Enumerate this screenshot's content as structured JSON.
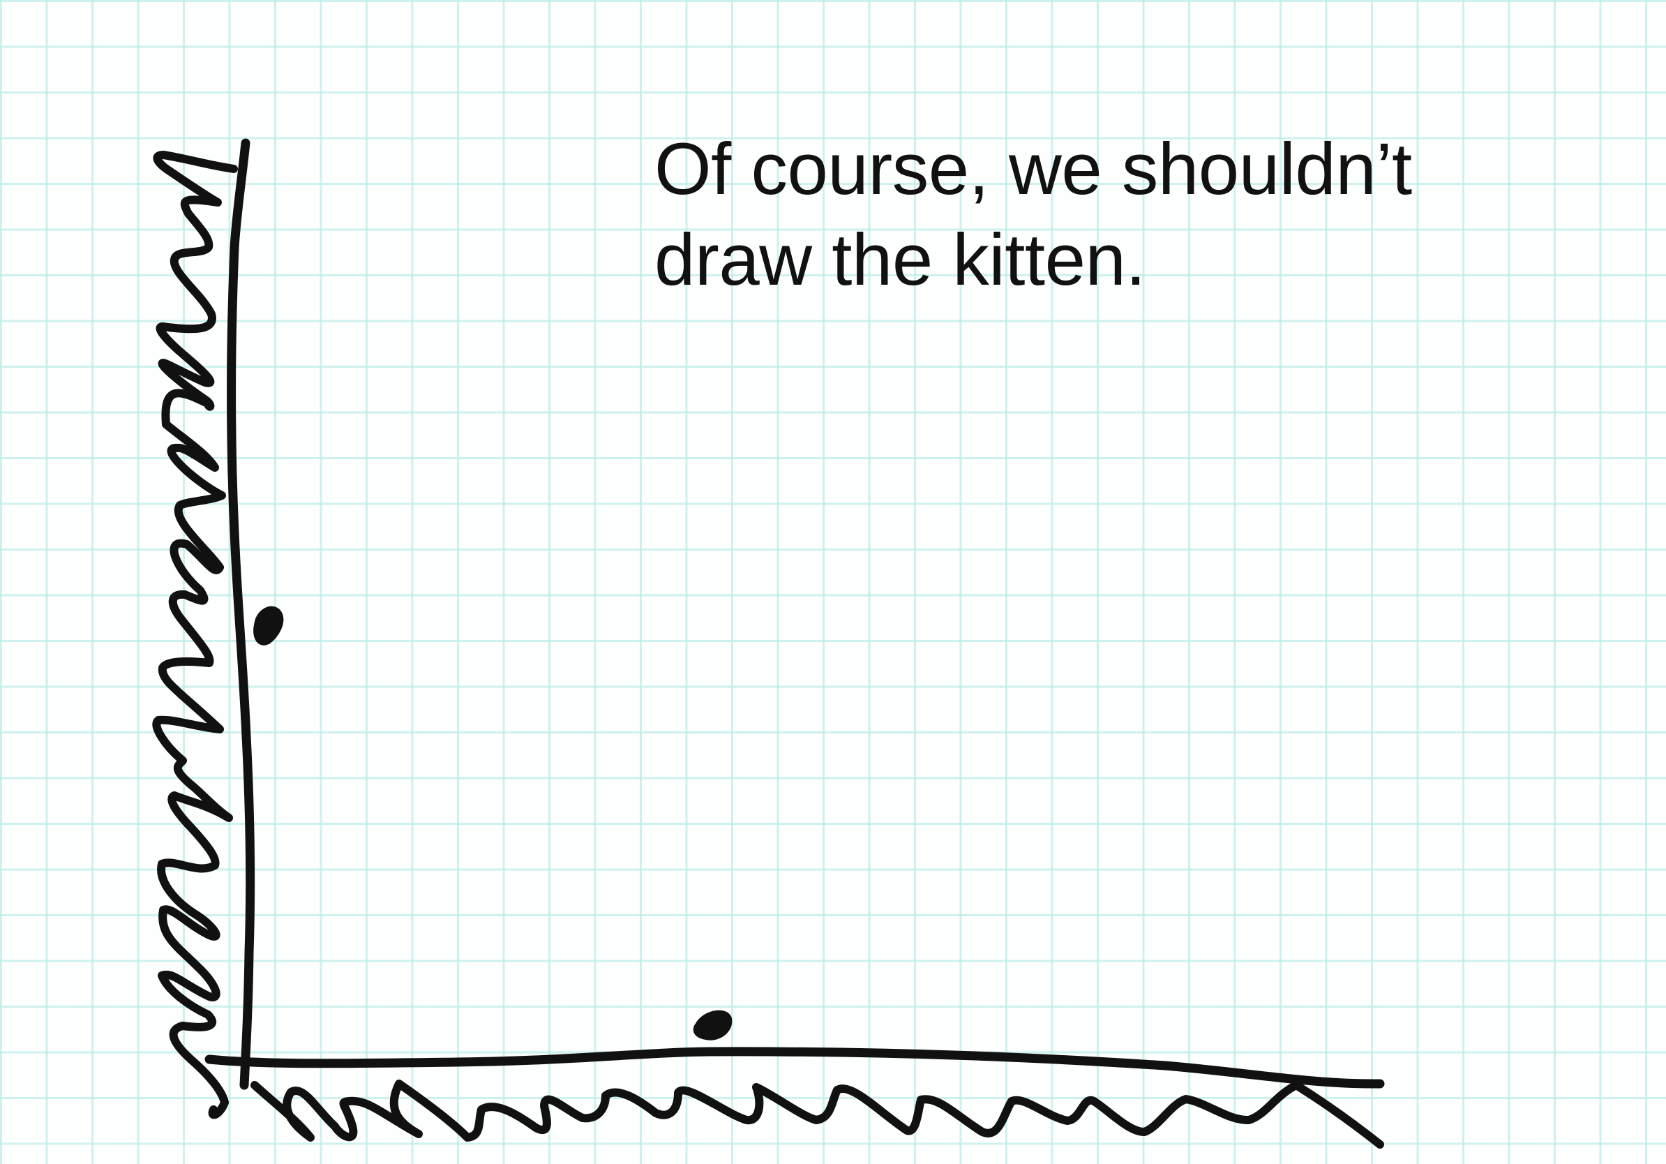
{
  "caption": {
    "line1": "Of course, we shouldn’t",
    "line2": "draw the kitten."
  },
  "colors": {
    "ink": "#111111",
    "grid": "#beeceb",
    "paper": "#fdfffe"
  },
  "icons": {
    "y_axis": "hand-drawn-vertical-axis",
    "x_axis": "hand-drawn-horizontal-axis",
    "y_label": "scribbled-y-label",
    "x_label": "scribbled-x-label",
    "marks": "ink-blot-dots"
  }
}
